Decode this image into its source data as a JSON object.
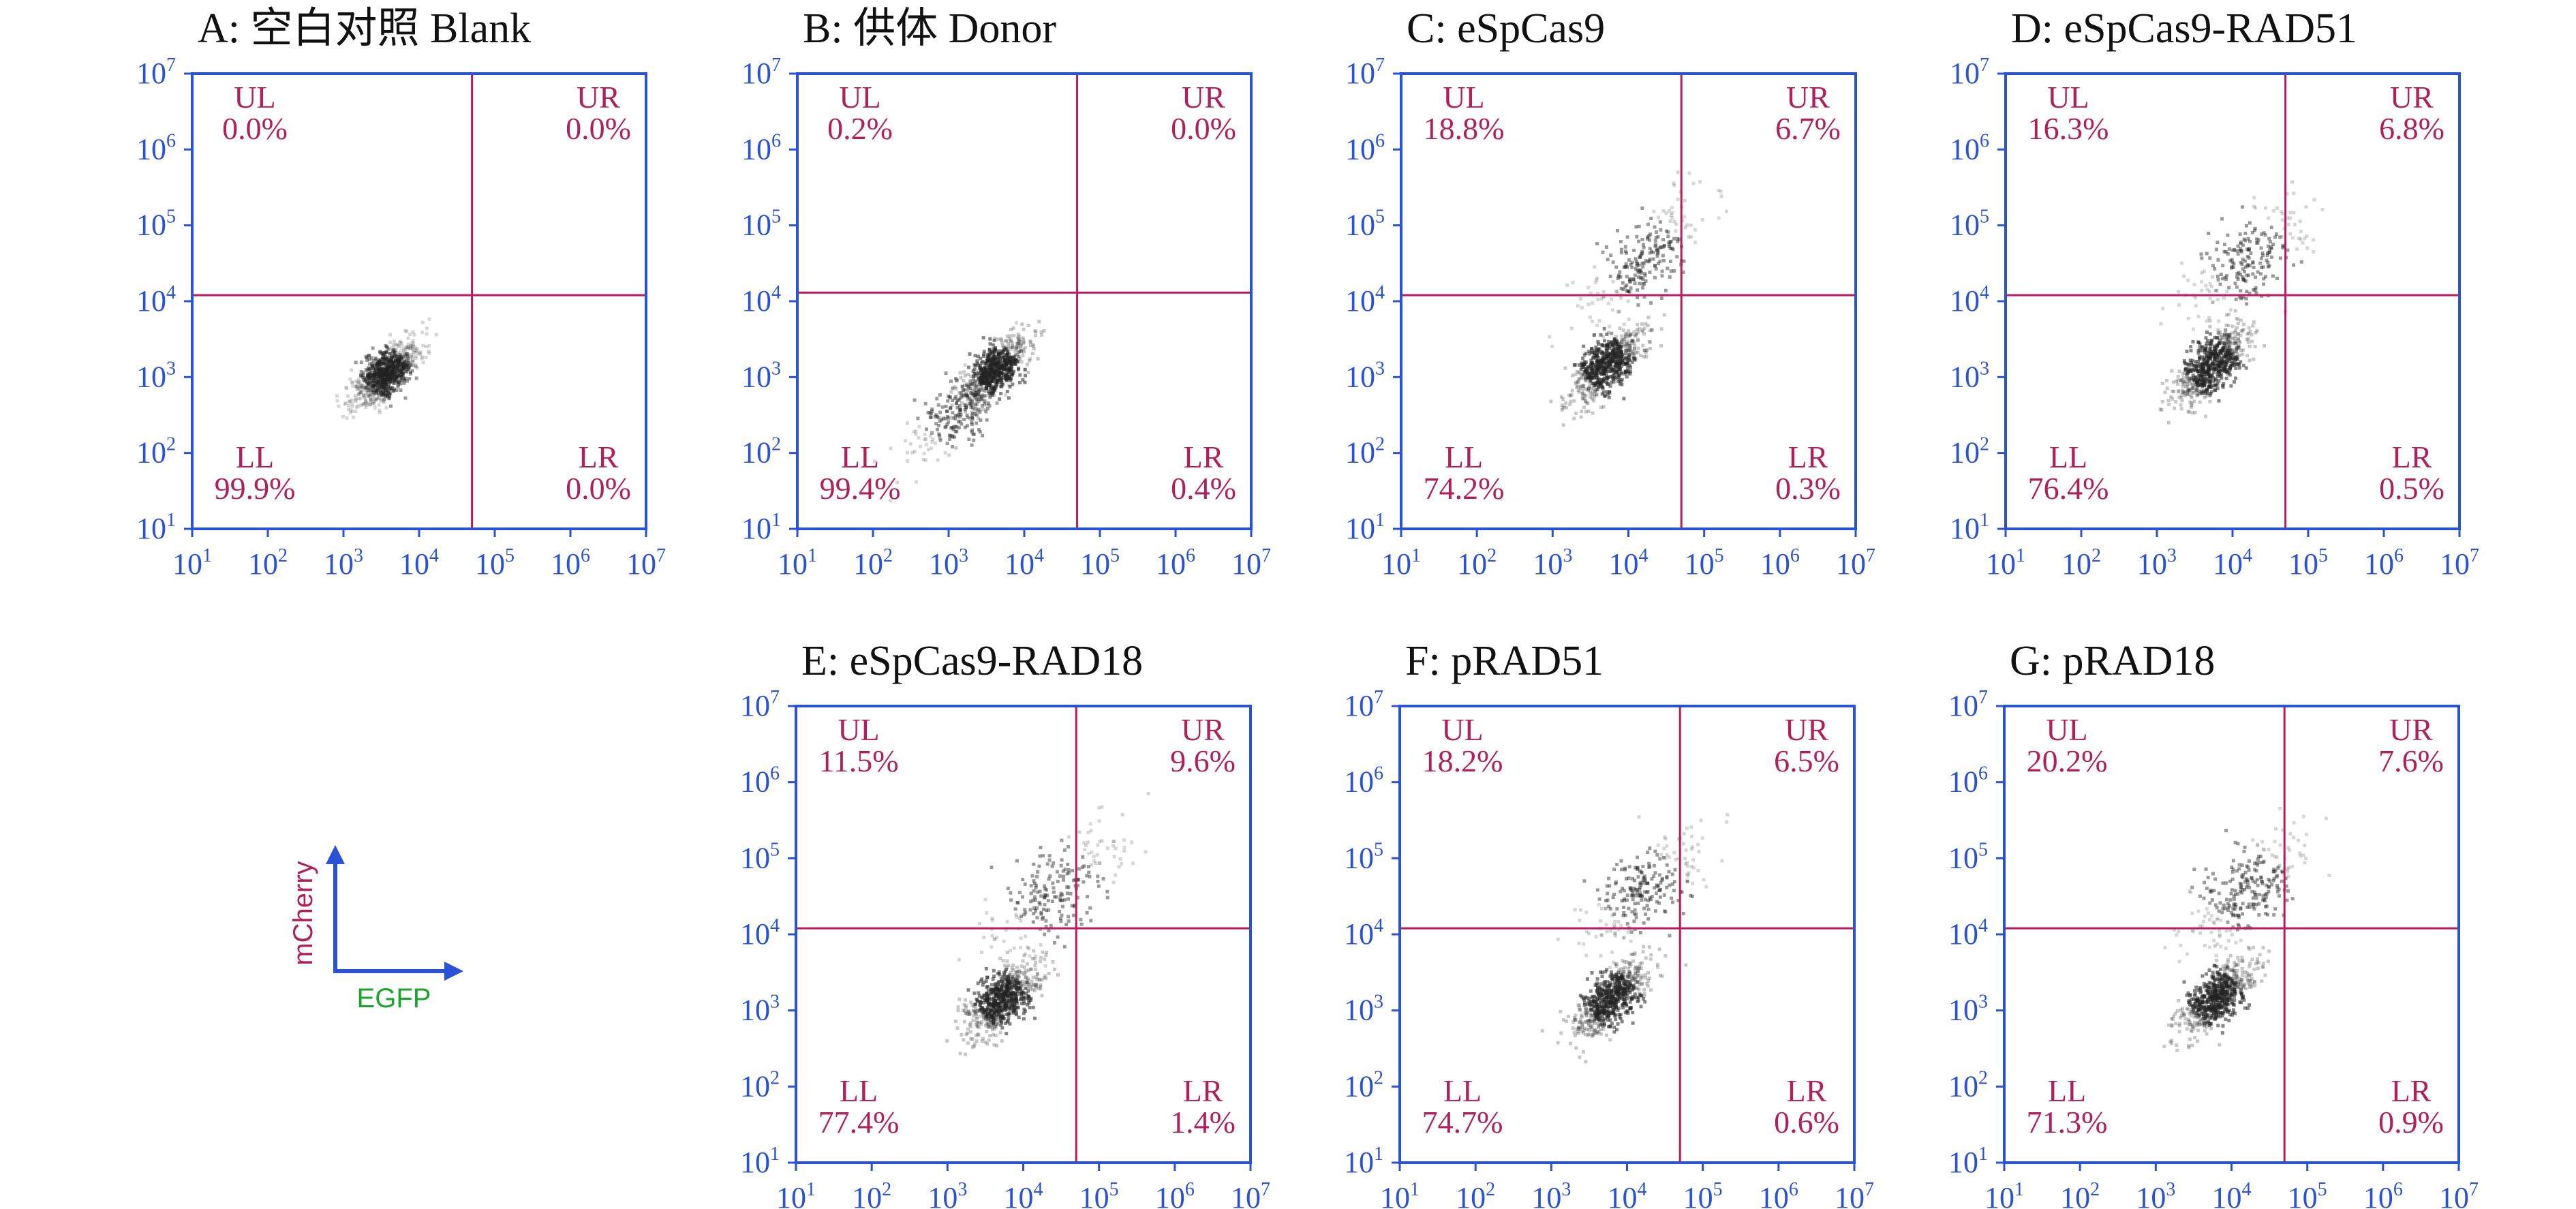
{
  "chart_data": [
    {
      "type": "scatter",
      "title": "A: 空白对照 Blank",
      "xlabel": "EGFP",
      "ylabel": "mCherry",
      "scale": "log10",
      "xlim": [
        10,
        10000000
      ],
      "ylim": [
        10,
        10000000
      ],
      "gate": {
        "x": 50000,
        "y": 12000
      },
      "quadrants": {
        "UL": "0.0%",
        "UR": "0.0%",
        "LL": "99.9%",
        "LR": "0.0%"
      },
      "populations": [
        {
          "cx": 3500,
          "cy": 1200,
          "share": 1.0,
          "spread": 0.22
        }
      ]
    },
    {
      "type": "scatter",
      "title": "B: 供体 Donor",
      "xlabel": "EGFP",
      "ylabel": "mCherry",
      "scale": "log10",
      "xlim": [
        10,
        10000000
      ],
      "ylim": [
        10,
        10000000
      ],
      "gate": {
        "x": 50000,
        "y": 13000
      },
      "quadrants": {
        "UL": "0.2%",
        "UR": "0.0%",
        "LL": "99.4%",
        "LR": "0.4%"
      },
      "populations": [
        {
          "cx": 4000,
          "cy": 1300,
          "share": 0.75,
          "spread": 0.22
        },
        {
          "cx": 1200,
          "cy": 350,
          "share": 0.25,
          "spread": 0.35
        }
      ]
    },
    {
      "type": "scatter",
      "title": "C: eSpCas9",
      "xlabel": "EGFP",
      "ylabel": "mCherry",
      "scale": "log10",
      "xlim": [
        10,
        10000000
      ],
      "ylim": [
        10,
        10000000
      ],
      "gate": {
        "x": 50000,
        "y": 12000
      },
      "quadrants": {
        "UL": "18.8%",
        "UR": "6.7%",
        "LL": "74.2%",
        "LR": "0.3%"
      },
      "populations": [
        {
          "cx": 5000,
          "cy": 1500,
          "share": 0.72,
          "spread": 0.25
        },
        {
          "cx": 15000,
          "cy": 40000,
          "share": 0.28,
          "spread": 0.4
        }
      ]
    },
    {
      "type": "scatter",
      "title": "D: eSpCas9-RAD51",
      "xlabel": "EGFP",
      "ylabel": "mCherry",
      "scale": "log10",
      "xlim": [
        10,
        10000000
      ],
      "ylim": [
        10,
        10000000
      ],
      "gate": {
        "x": 50000,
        "y": 12000
      },
      "quadrants": {
        "UL": "16.3%",
        "UR": "6.8%",
        "LL": "76.4%",
        "LR": "0.5%"
      },
      "populations": [
        {
          "cx": 5000,
          "cy": 1500,
          "share": 0.74,
          "spread": 0.25
        },
        {
          "cx": 15000,
          "cy": 40000,
          "share": 0.26,
          "spread": 0.4
        }
      ]
    },
    {
      "type": "scatter",
      "title": "E: eSpCas9-RAD18",
      "xlabel": "EGFP",
      "ylabel": "mCherry",
      "scale": "log10",
      "xlim": [
        10,
        10000000
      ],
      "ylim": [
        10,
        10000000
      ],
      "gate": {
        "x": 50000,
        "y": 12000
      },
      "quadrants": {
        "UL": "11.5%",
        "UR": "9.6%",
        "LL": "77.4%",
        "LR": "1.4%"
      },
      "populations": [
        {
          "cx": 5000,
          "cy": 1500,
          "share": 0.74,
          "spread": 0.25
        },
        {
          "cx": 25000,
          "cy": 40000,
          "share": 0.26,
          "spread": 0.45
        }
      ]
    },
    {
      "type": "scatter",
      "title": "F: pRAD51",
      "xlabel": "EGFP",
      "ylabel": "mCherry",
      "scale": "log10",
      "xlim": [
        10,
        10000000
      ],
      "ylim": [
        10,
        10000000
      ],
      "gate": {
        "x": 50000,
        "y": 12000
      },
      "quadrants": {
        "UL": "18.2%",
        "UR": "6.5%",
        "LL": "74.7%",
        "LR": "0.6%"
      },
      "populations": [
        {
          "cx": 6000,
          "cy": 1500,
          "share": 0.72,
          "spread": 0.25
        },
        {
          "cx": 15000,
          "cy": 40000,
          "share": 0.28,
          "spread": 0.4
        }
      ]
    },
    {
      "type": "scatter",
      "title": "G: pRAD18",
      "xlabel": "EGFP",
      "ylabel": "mCherry",
      "scale": "log10",
      "xlim": [
        10,
        10000000
      ],
      "ylim": [
        10,
        10000000
      ],
      "gate": {
        "x": 50000,
        "y": 12000
      },
      "quadrants": {
        "UL": "20.2%",
        "UR": "7.6%",
        "LL": "71.3%",
        "LR": "0.9%"
      },
      "populations": [
        {
          "cx": 6000,
          "cy": 1500,
          "share": 0.7,
          "spread": 0.25
        },
        {
          "cx": 15000,
          "cy": 40000,
          "share": 0.3,
          "spread": 0.4
        }
      ]
    }
  ],
  "axis_legend": {
    "y_label": "mCherry",
    "x_label": "EGFP"
  },
  "tick_base": "10",
  "tick_exponents": [
    "1",
    "2",
    "3",
    "4",
    "5",
    "6",
    "7"
  ],
  "colors": {
    "axis": "#2a52d6",
    "gate": "#c2185b",
    "quadrant_text": "#b0205a",
    "x_channel": "#1aa52a",
    "events": "#222222"
  }
}
